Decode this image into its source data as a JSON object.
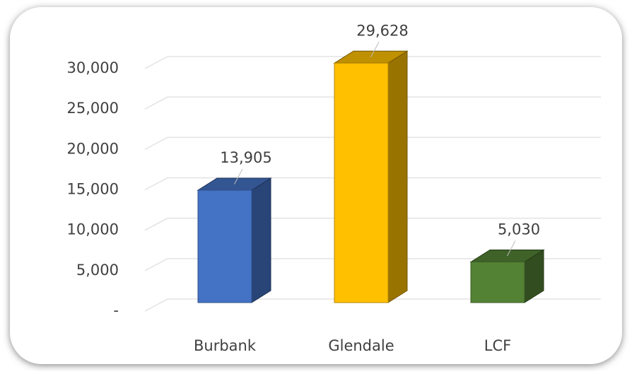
{
  "chart_data": {
    "type": "bar3d",
    "categories": [
      "Burbank",
      "Glendale",
      "LCF"
    ],
    "values": [
      13905,
      29628,
      5030
    ],
    "value_labels": [
      "13,905",
      "29,628",
      "5,030"
    ],
    "colors": [
      "#4472c4",
      "#ffc000",
      "#548235"
    ],
    "ylim": [
      0,
      30000
    ],
    "yticks": [
      {
        "value": 0,
        "label": "-"
      },
      {
        "value": 5000,
        "label": "5,000"
      },
      {
        "value": 10000,
        "label": "10,000"
      },
      {
        "value": 15000,
        "label": "15,000"
      },
      {
        "value": 20000,
        "label": "20,000"
      },
      {
        "value": 25000,
        "label": "25,000"
      },
      {
        "value": 30000,
        "label": "30,000"
      }
    ],
    "grid": true
  }
}
